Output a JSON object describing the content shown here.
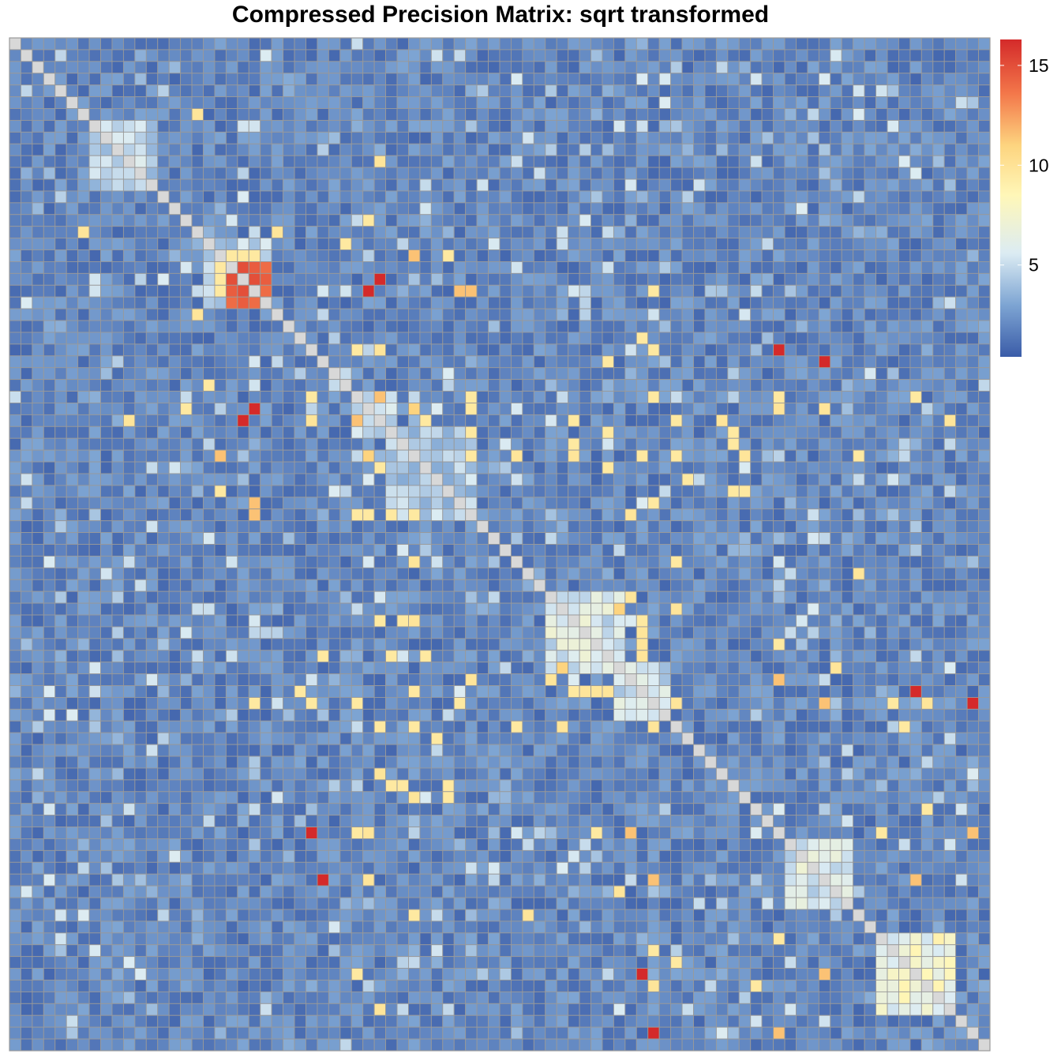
{
  "chart_data": {
    "type": "heatmap",
    "title": "Compressed Precision Matrix: sqrt transformed",
    "size": 86,
    "value_range": [
      0.4,
      16.3
    ],
    "diagonal_color": "#d8d8d8",
    "na_color": "#d8d8d8",
    "grid_color": "#999999",
    "colorscale": [
      {
        "v": 0.4,
        "color": "#3a5ca8"
      },
      {
        "v": 3.0,
        "color": "#7ea5d3"
      },
      {
        "v": 5.6,
        "color": "#dcecf3"
      },
      {
        "v": 8.5,
        "color": "#fff7b8"
      },
      {
        "v": 11.0,
        "color": "#fdd47f"
      },
      {
        "v": 13.6,
        "color": "#f3774a"
      },
      {
        "v": 16.3,
        "color": "#d42a2a"
      }
    ],
    "colorbar": {
      "ticks": [
        5,
        10,
        15
      ],
      "tick_labels": [
        "5",
        "10",
        "15"
      ]
    },
    "blocks": [
      {
        "start": 7,
        "end": 12,
        "value": 5.0
      },
      {
        "start": 17,
        "end": 22,
        "value": 5.0
      },
      {
        "start": 30,
        "end": 33,
        "value": 5.0
      },
      {
        "start": 33,
        "end": 40,
        "value": 4.5
      },
      {
        "start": 47,
        "end": 53,
        "value": 6.0
      },
      {
        "start": 53,
        "end": 57,
        "value": 5.5
      },
      {
        "start": 68,
        "end": 73,
        "value": 6.0
      },
      {
        "start": 76,
        "end": 82,
        "value": 7.5
      }
    ],
    "strong_cells": [
      [
        19,
        19,
        15.0
      ],
      [
        19,
        20,
        15.0
      ],
      [
        19,
        21,
        14.5
      ],
      [
        19,
        22,
        14.5
      ],
      [
        20,
        19,
        15.0
      ],
      [
        20,
        20,
        15.0
      ],
      [
        20,
        21,
        15.0
      ],
      [
        20,
        22,
        14.5
      ],
      [
        21,
        19,
        14.5
      ],
      [
        21,
        20,
        15.0
      ],
      [
        21,
        21,
        14.5
      ],
      [
        21,
        22,
        15.0
      ],
      [
        22,
        19,
        14.0
      ],
      [
        22,
        20,
        14.5
      ],
      [
        22,
        21,
        14.0
      ],
      [
        22,
        22,
        14.5
      ],
      [
        18,
        18,
        9.0
      ],
      [
        18,
        19,
        9.5
      ],
      [
        18,
        20,
        10.0
      ],
      [
        18,
        21,
        10.0
      ],
      [
        19,
        18,
        9.5
      ],
      [
        20,
        18,
        9.5
      ],
      [
        21,
        18,
        9.5
      ],
      [
        16,
        6,
        9.8
      ],
      [
        16,
        23,
        9.8
      ],
      [
        6,
        16,
        9.8
      ],
      [
        23,
        16,
        9.8
      ],
      [
        20,
        32,
        16.3
      ],
      [
        32,
        20,
        16.3
      ],
      [
        17,
        29,
        9.5
      ],
      [
        29,
        17,
        9.5
      ],
      [
        21,
        39,
        11.5
      ],
      [
        39,
        21,
        11.5
      ],
      [
        26,
        32,
        9.5
      ],
      [
        32,
        26,
        9.5
      ],
      [
        26,
        56,
        9.5
      ],
      [
        56,
        26,
        9.5
      ],
      [
        27,
        71,
        16.3
      ],
      [
        71,
        27,
        16.3
      ],
      [
        31,
        15,
        9.5
      ],
      [
        31,
        21,
        16.3
      ],
      [
        15,
        31,
        9.5
      ],
      [
        32,
        10,
        9.8
      ],
      [
        32,
        26,
        9.8
      ],
      [
        32,
        36,
        9.5
      ],
      [
        32,
        49,
        9.5
      ],
      [
        32,
        62,
        9.8
      ],
      [
        32,
        82,
        9.8
      ],
      [
        49,
        32,
        9.5
      ],
      [
        62,
        32,
        9.8
      ],
      [
        82,
        32,
        9.8
      ],
      [
        31,
        71,
        9.8
      ],
      [
        71,
        31,
        9.8
      ],
      [
        30,
        32,
        11.5
      ],
      [
        30,
        26,
        9.5
      ],
      [
        35,
        18,
        11.5
      ],
      [
        18,
        35,
        11.5
      ],
      [
        35,
        31,
        11.0
      ],
      [
        35,
        40,
        9.5
      ],
      [
        35,
        44,
        9.8
      ],
      [
        35,
        49,
        9.8
      ],
      [
        35,
        64,
        9.8
      ],
      [
        35,
        55,
        9.5
      ],
      [
        38,
        64,
        9.5
      ],
      [
        38,
        18,
        9.5
      ],
      [
        40,
        21,
        11.5
      ],
      [
        40,
        30,
        9.5
      ],
      [
        40,
        31,
        9.5
      ],
      [
        40,
        54,
        9.8
      ],
      [
        40,
        33,
        9.5
      ],
      [
        33,
        40,
        9.5
      ],
      [
        48,
        53,
        11.0
      ],
      [
        49,
        34,
        9.5
      ],
      [
        49,
        55,
        9.5
      ],
      [
        52,
        27,
        9.5
      ],
      [
        52,
        36,
        9.5
      ],
      [
        52,
        33,
        9.5
      ],
      [
        53,
        72,
        9.8
      ],
      [
        54,
        47,
        9.8
      ],
      [
        55,
        25,
        9.5
      ],
      [
        55,
        50,
        9.8
      ],
      [
        55,
        51,
        9.8
      ],
      [
        55,
        52,
        9.8
      ],
      [
        56,
        30,
        9.5
      ],
      [
        56,
        71,
        11.5
      ],
      [
        56,
        84,
        16.3
      ],
      [
        56,
        77,
        9.5
      ],
      [
        56,
        21,
        9.5
      ],
      [
        56,
        39,
        9.5
      ],
      [
        56,
        58,
        9.8
      ],
      [
        56,
        80,
        9.8
      ],
      [
        58,
        32,
        9.5
      ],
      [
        58,
        44,
        9.5
      ],
      [
        58,
        48,
        9.8
      ],
      [
        58,
        56,
        9.8
      ],
      [
        58,
        78,
        9.5
      ],
      [
        58,
        35,
        9.5
      ],
      [
        59,
        37,
        9.5
      ],
      [
        63,
        33,
        9.5
      ],
      [
        63,
        34,
        9.5
      ],
      [
        63,
        38,
        9.5
      ],
      [
        65,
        80,
        9.5
      ],
      [
        67,
        26,
        16.3
      ],
      [
        67,
        30,
        9.5
      ],
      [
        67,
        31,
        9.8
      ],
      [
        67,
        51,
        9.5
      ],
      [
        67,
        54,
        11.5
      ],
      [
        67,
        84,
        11.5
      ],
      [
        74,
        35,
        9.5
      ],
      [
        74,
        45,
        9.8
      ],
      [
        76,
        67,
        9.5
      ],
      [
        79,
        30,
        9.5
      ],
      [
        79,
        55,
        16.3
      ],
      [
        79,
        71,
        11.5
      ],
      [
        84,
        56,
        16.3
      ],
      [
        71,
        56,
        11.5
      ],
      [
        54,
        67,
        11.5
      ],
      [
        26,
        67,
        16.3
      ],
      [
        30,
        67,
        9.5
      ]
    ]
  }
}
